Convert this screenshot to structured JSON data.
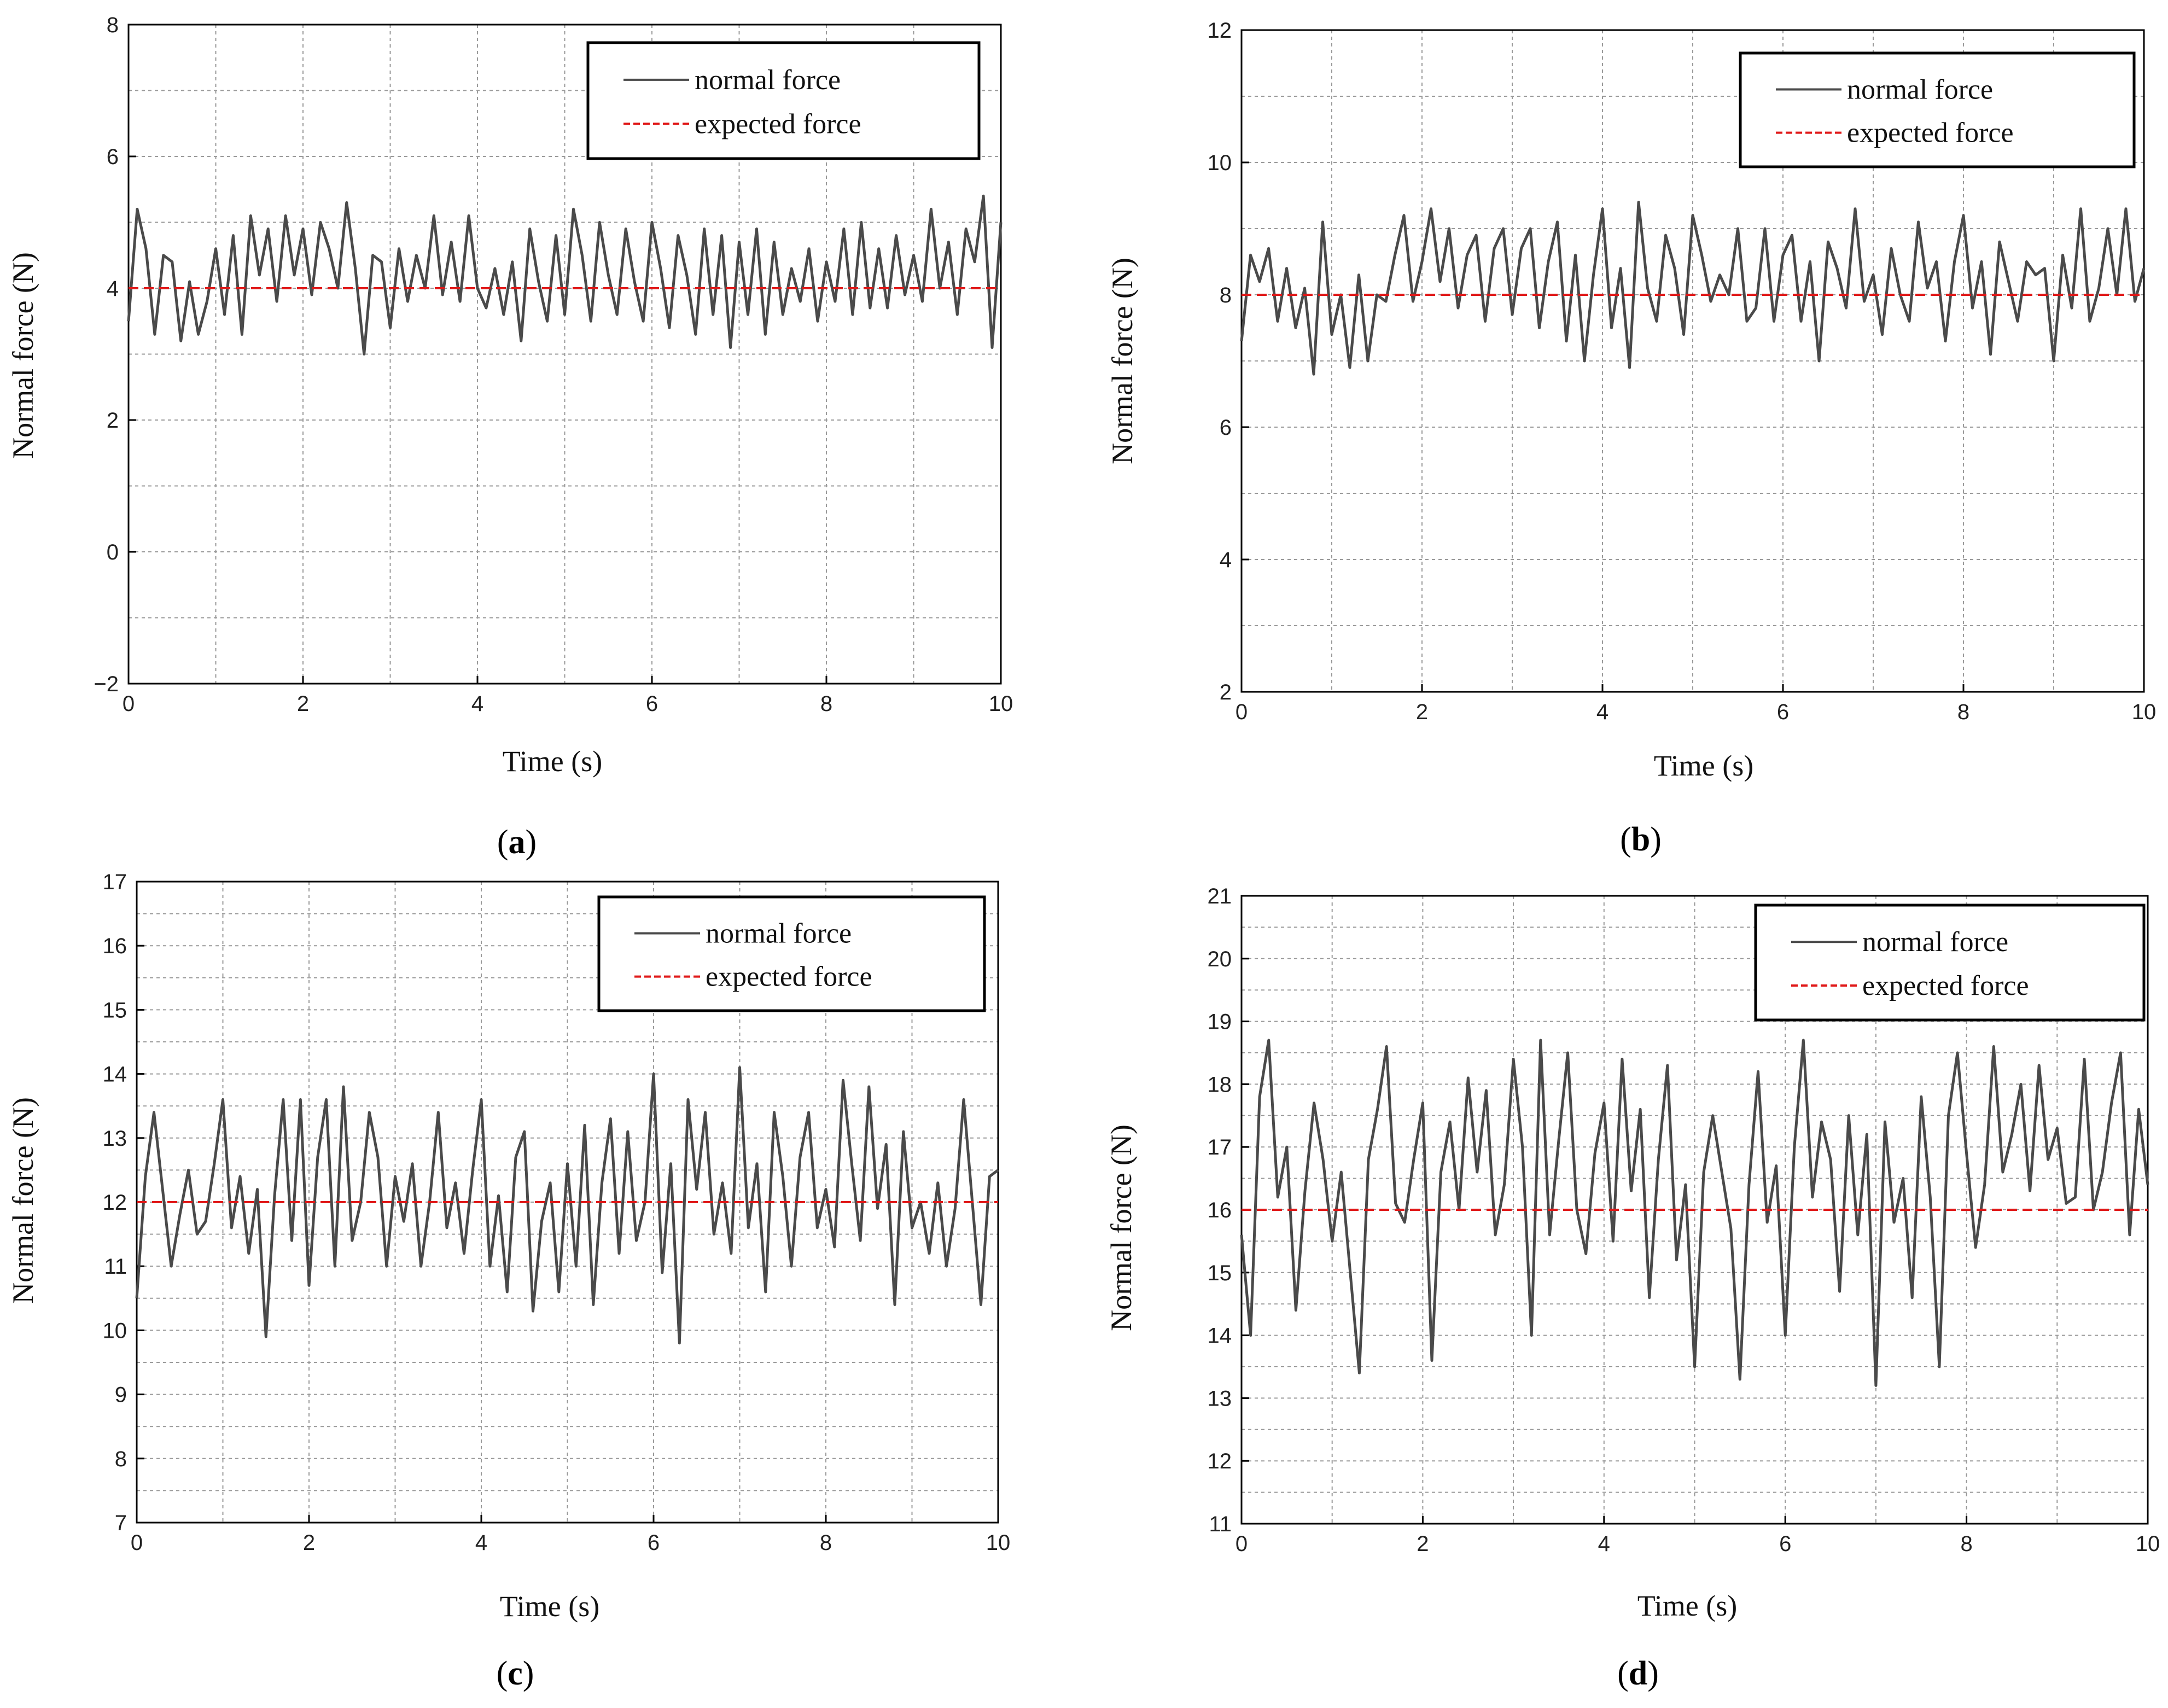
{
  "colors": {
    "measured": "#4a4a4a",
    "expected": "#e01818",
    "grid": "#9a9a9a",
    "frame": "#000000"
  },
  "chart_data": [
    {
      "panel": "a",
      "type": "line",
      "caption_open": "(",
      "caption_letter": "a",
      "caption_close": ")",
      "xlabel": "Time (s)",
      "ylabel": "Normal force (N)",
      "xlim": [
        0,
        10
      ],
      "ylim": [
        -2,
        8
      ],
      "xticks": [
        0,
        2,
        4,
        6,
        8,
        10
      ],
      "yticks": [
        -2,
        0,
        2,
        4,
        6,
        8
      ],
      "ytick_labels": [
        "−2",
        "0",
        "2",
        "4",
        "6",
        "8"
      ],
      "grid": true,
      "legend": "top-right",
      "series": [
        {
          "name": "normal force",
          "style": "solid",
          "color": "#4a4a4a",
          "x": [
            0,
            0.1,
            0.2,
            0.3,
            0.4,
            0.5,
            0.6,
            0.7,
            0.8,
            0.9,
            1.0,
            1.1,
            1.2,
            1.3,
            1.4,
            1.5,
            1.6,
            1.7,
            1.8,
            1.9,
            2.0,
            2.1,
            2.2,
            2.3,
            2.4,
            2.5,
            2.6,
            2.7,
            2.8,
            2.9,
            3.0,
            3.1,
            3.2,
            3.3,
            3.4,
            3.5,
            3.6,
            3.7,
            3.8,
            3.9,
            4.0,
            4.1,
            4.2,
            4.3,
            4.4,
            4.5,
            4.6,
            4.7,
            4.8,
            4.9,
            5.0,
            5.1,
            5.2,
            5.3,
            5.4,
            5.5,
            5.6,
            5.7,
            5.8,
            5.9,
            6.0,
            6.1,
            6.2,
            6.3,
            6.4,
            6.5,
            6.6,
            6.7,
            6.8,
            6.9,
            7.0,
            7.1,
            7.2,
            7.3,
            7.4,
            7.5,
            7.6,
            7.7,
            7.8,
            7.9,
            8.0,
            8.1,
            8.2,
            8.3,
            8.4,
            8.5,
            8.6,
            8.7,
            8.8,
            8.9,
            9.0,
            9.1,
            9.2,
            9.3,
            9.4,
            9.5,
            9.6,
            9.7,
            9.8,
            9.9,
            10.0
          ],
          "y": [
            3.5,
            5.2,
            4.6,
            3.3,
            4.5,
            4.4,
            3.2,
            4.1,
            3.3,
            3.8,
            4.6,
            3.6,
            4.8,
            3.3,
            5.1,
            4.2,
            4.9,
            3.8,
            5.1,
            4.2,
            4.9,
            3.9,
            5.0,
            4.6,
            4.0,
            5.3,
            4.3,
            3.0,
            4.5,
            4.4,
            3.4,
            4.6,
            3.8,
            4.5,
            4.0,
            5.1,
            3.9,
            4.7,
            3.8,
            5.1,
            4.0,
            3.7,
            4.3,
            3.6,
            4.4,
            3.2,
            4.9,
            4.1,
            3.5,
            4.8,
            3.6,
            5.2,
            4.5,
            3.5,
            5.0,
            4.2,
            3.6,
            4.9,
            4.1,
            3.5,
            5.0,
            4.3,
            3.4,
            4.8,
            4.2,
            3.3,
            4.9,
            3.6,
            4.8,
            3.1,
            4.7,
            3.6,
            4.9,
            3.3,
            4.7,
            3.6,
            4.3,
            3.8,
            4.6,
            3.5,
            4.4,
            3.8,
            4.9,
            3.6,
            5.0,
            3.7,
            4.6,
            3.7,
            4.8,
            3.9,
            4.5,
            3.8,
            5.2,
            4.0,
            4.7,
            3.6,
            4.9,
            4.4,
            5.4,
            3.1,
            5.0
          ]
        },
        {
          "name": "expected force",
          "style": "dashed",
          "color": "#e01818",
          "x": [
            0,
            10
          ],
          "y": [
            4,
            4
          ]
        }
      ]
    },
    {
      "panel": "b",
      "type": "line",
      "caption_open": "(",
      "caption_letter": "b",
      "caption_close": ")",
      "xlabel": "Time (s)",
      "ylabel": "Normal force (N)",
      "xlim": [
        0,
        10
      ],
      "ylim": [
        2,
        12
      ],
      "xticks": [
        0,
        2,
        4,
        6,
        8,
        10
      ],
      "yticks": [
        2,
        4,
        6,
        8,
        10,
        12
      ],
      "ytick_labels": [
        "2",
        "4",
        "6",
        "8",
        "10",
        "12"
      ],
      "grid": true,
      "legend": "top-right",
      "series": [
        {
          "name": "normal force",
          "style": "solid",
          "color": "#4a4a4a",
          "x": [
            0,
            0.1,
            0.2,
            0.3,
            0.4,
            0.5,
            0.6,
            0.7,
            0.8,
            0.9,
            1.0,
            1.1,
            1.2,
            1.3,
            1.4,
            1.5,
            1.6,
            1.7,
            1.8,
            1.9,
            2.0,
            2.1,
            2.2,
            2.3,
            2.4,
            2.5,
            2.6,
            2.7,
            2.8,
            2.9,
            3.0,
            3.1,
            3.2,
            3.3,
            3.4,
            3.5,
            3.6,
            3.7,
            3.8,
            3.9,
            4.0,
            4.1,
            4.2,
            4.3,
            4.4,
            4.5,
            4.6,
            4.7,
            4.8,
            4.9,
            5.0,
            5.1,
            5.2,
            5.3,
            5.4,
            5.5,
            5.6,
            5.7,
            5.8,
            5.9,
            6.0,
            6.1,
            6.2,
            6.3,
            6.4,
            6.5,
            6.6,
            6.7,
            6.8,
            6.9,
            7.0,
            7.1,
            7.2,
            7.3,
            7.4,
            7.5,
            7.6,
            7.7,
            7.8,
            7.9,
            8.0,
            8.1,
            8.2,
            8.3,
            8.4,
            8.5,
            8.6,
            8.7,
            8.8,
            8.9,
            9.0,
            9.1,
            9.2,
            9.3,
            9.4,
            9.5,
            9.6,
            9.7,
            9.8,
            9.9,
            10.0
          ],
          "y": [
            7.3,
            8.6,
            8.2,
            8.7,
            7.6,
            8.4,
            7.5,
            8.1,
            6.8,
            9.1,
            7.4,
            8.0,
            6.9,
            8.3,
            7.0,
            8.0,
            7.9,
            8.6,
            9.2,
            7.9,
            8.5,
            9.3,
            8.2,
            9.0,
            7.8,
            8.6,
            8.9,
            7.6,
            8.7,
            9.0,
            7.7,
            8.7,
            9.0,
            7.5,
            8.5,
            9.1,
            7.3,
            8.6,
            7.0,
            8.3,
            9.3,
            7.5,
            8.4,
            6.9,
            9.4,
            8.1,
            7.6,
            8.9,
            8.4,
            7.4,
            9.2,
            8.6,
            7.9,
            8.3,
            8.0,
            9.0,
            7.6,
            7.8,
            9.0,
            7.6,
            8.6,
            8.9,
            7.6,
            8.5,
            7.0,
            8.8,
            8.4,
            7.8,
            9.3,
            7.9,
            8.3,
            7.4,
            8.7,
            8.0,
            7.6,
            9.1,
            8.1,
            8.5,
            7.3,
            8.5,
            9.2,
            7.8,
            8.5,
            7.1,
            8.8,
            8.2,
            7.6,
            8.5,
            8.3,
            8.4,
            7.0,
            8.6,
            7.8,
            9.3,
            7.6,
            8.1,
            9.0,
            8.0,
            9.3,
            7.9,
            8.4
          ]
        },
        {
          "name": "expected force",
          "style": "dashed",
          "color": "#e01818",
          "x": [
            0,
            10
          ],
          "y": [
            8,
            8
          ]
        }
      ]
    },
    {
      "panel": "c",
      "type": "line",
      "caption_open": "(",
      "caption_letter": "c",
      "caption_close": ")",
      "xlabel": "Time (s)",
      "ylabel": "Normal force (N)",
      "xlim": [
        0,
        10
      ],
      "ylim": [
        7,
        17
      ],
      "xticks": [
        0,
        2,
        4,
        6,
        8,
        10
      ],
      "yticks": [
        7,
        8,
        9,
        10,
        11,
        12,
        13,
        14,
        15,
        16,
        17
      ],
      "ytick_labels": [
        "7",
        "8",
        "9",
        "10",
        "11",
        "12",
        "13",
        "14",
        "15",
        "16",
        "17"
      ],
      "grid": true,
      "legend": "top-right",
      "series": [
        {
          "name": "normal force",
          "style": "solid",
          "color": "#4a4a4a",
          "x": [
            0,
            0.1,
            0.2,
            0.3,
            0.4,
            0.5,
            0.6,
            0.7,
            0.8,
            0.9,
            1.0,
            1.1,
            1.2,
            1.3,
            1.4,
            1.5,
            1.6,
            1.7,
            1.8,
            1.9,
            2.0,
            2.1,
            2.2,
            2.3,
            2.4,
            2.5,
            2.6,
            2.7,
            2.8,
            2.9,
            3.0,
            3.1,
            3.2,
            3.3,
            3.4,
            3.5,
            3.6,
            3.7,
            3.8,
            3.9,
            4.0,
            4.1,
            4.2,
            4.3,
            4.4,
            4.5,
            4.6,
            4.7,
            4.8,
            4.9,
            5.0,
            5.1,
            5.2,
            5.3,
            5.4,
            5.5,
            5.6,
            5.7,
            5.8,
            5.9,
            6.0,
            6.1,
            6.2,
            6.3,
            6.4,
            6.5,
            6.6,
            6.7,
            6.8,
            6.9,
            7.0,
            7.1,
            7.2,
            7.3,
            7.4,
            7.5,
            7.6,
            7.7,
            7.8,
            7.9,
            8.0,
            8.1,
            8.2,
            8.3,
            8.4,
            8.5,
            8.6,
            8.7,
            8.8,
            8.9,
            9.0,
            9.1,
            9.2,
            9.3,
            9.4,
            9.5,
            9.6,
            9.7,
            9.8,
            9.9,
            10.0
          ],
          "y": [
            10.5,
            12.4,
            13.4,
            12.2,
            11.0,
            11.8,
            12.5,
            11.5,
            11.7,
            12.6,
            13.6,
            11.6,
            12.4,
            11.2,
            12.2,
            9.9,
            12.1,
            13.6,
            11.4,
            13.6,
            10.7,
            12.7,
            13.6,
            11.0,
            13.8,
            11.4,
            12.0,
            13.4,
            12.7,
            11.0,
            12.4,
            11.7,
            12.6,
            11.0,
            12.0,
            13.4,
            11.6,
            12.3,
            11.2,
            12.5,
            13.6,
            11.0,
            12.1,
            10.6,
            12.7,
            13.1,
            10.3,
            11.7,
            12.3,
            10.6,
            12.6,
            11.0,
            13.2,
            10.4,
            12.3,
            13.3,
            11.2,
            13.1,
            11.4,
            12.0,
            14.0,
            10.9,
            12.6,
            9.8,
            13.6,
            12.2,
            13.4,
            11.5,
            12.3,
            11.2,
            14.1,
            11.6,
            12.6,
            10.6,
            13.4,
            12.4,
            11.0,
            12.7,
            13.4,
            11.6,
            12.2,
            11.3,
            13.9,
            12.6,
            11.4,
            13.8,
            11.9,
            12.9,
            10.4,
            13.1,
            11.6,
            12.0,
            11.2,
            12.3,
            11.0,
            11.9,
            13.6,
            12.0,
            10.4,
            12.4,
            12.5
          ]
        },
        {
          "name": "expected force",
          "style": "dashed",
          "color": "#e01818",
          "x": [
            0,
            10
          ],
          "y": [
            12,
            12
          ]
        }
      ]
    },
    {
      "panel": "d",
      "type": "line",
      "caption_open": "(",
      "caption_letter": "d",
      "caption_close": ")",
      "xlabel": "Time (s)",
      "ylabel": "Normal force (N)",
      "xlim": [
        0,
        10
      ],
      "ylim": [
        11,
        21
      ],
      "xticks": [
        0,
        2,
        4,
        6,
        8,
        10
      ],
      "yticks": [
        11,
        12,
        13,
        14,
        15,
        16,
        17,
        18,
        19,
        20,
        21
      ],
      "ytick_labels": [
        "11",
        "12",
        "13",
        "14",
        "15",
        "16",
        "17",
        "18",
        "19",
        "20",
        "21"
      ],
      "grid": true,
      "legend": "top-right",
      "series": [
        {
          "name": "normal force",
          "style": "solid",
          "color": "#4a4a4a",
          "x": [
            0,
            0.1,
            0.2,
            0.3,
            0.4,
            0.5,
            0.6,
            0.7,
            0.8,
            0.9,
            1.0,
            1.1,
            1.2,
            1.3,
            1.4,
            1.5,
            1.6,
            1.7,
            1.8,
            1.9,
            2.0,
            2.1,
            2.2,
            2.3,
            2.4,
            2.5,
            2.6,
            2.7,
            2.8,
            2.9,
            3.0,
            3.1,
            3.2,
            3.3,
            3.4,
            3.5,
            3.6,
            3.7,
            3.8,
            3.9,
            4.0,
            4.1,
            4.2,
            4.3,
            4.4,
            4.5,
            4.6,
            4.7,
            4.8,
            4.9,
            5.0,
            5.1,
            5.2,
            5.3,
            5.4,
            5.5,
            5.6,
            5.7,
            5.8,
            5.9,
            6.0,
            6.1,
            6.2,
            6.3,
            6.4,
            6.5,
            6.6,
            6.7,
            6.8,
            6.9,
            7.0,
            7.1,
            7.2,
            7.3,
            7.4,
            7.5,
            7.6,
            7.7,
            7.8,
            7.9,
            8.0,
            8.1,
            8.2,
            8.3,
            8.4,
            8.5,
            8.6,
            8.7,
            8.8,
            8.9,
            9.0,
            9.1,
            9.2,
            9.3,
            9.4,
            9.5,
            9.6,
            9.7,
            9.8,
            9.9,
            10.0
          ],
          "y": [
            15.6,
            14.0,
            17.8,
            18.7,
            16.2,
            17.0,
            14.4,
            16.3,
            17.7,
            16.8,
            15.5,
            16.6,
            15.0,
            13.4,
            16.8,
            17.6,
            18.6,
            16.1,
            15.8,
            16.8,
            17.7,
            13.6,
            16.6,
            17.4,
            16.0,
            18.1,
            16.6,
            17.9,
            15.6,
            16.4,
            18.4,
            17.0,
            14.0,
            18.7,
            15.6,
            17.1,
            18.5,
            16.0,
            15.3,
            16.9,
            17.7,
            15.5,
            18.4,
            16.3,
            17.6,
            14.6,
            16.8,
            18.3,
            15.2,
            16.4,
            13.5,
            16.6,
            17.5,
            16.6,
            15.7,
            13.3,
            16.4,
            18.2,
            15.8,
            16.7,
            14.0,
            17.0,
            18.7,
            16.2,
            17.4,
            16.8,
            14.7,
            17.5,
            15.6,
            17.2,
            13.2,
            17.4,
            15.8,
            16.5,
            14.6,
            17.8,
            16.2,
            13.5,
            17.5,
            18.5,
            16.9,
            15.4,
            16.4,
            18.6,
            16.6,
            17.2,
            18.0,
            16.3,
            18.3,
            16.8,
            17.3,
            16.1,
            16.2,
            18.4,
            16.0,
            16.6,
            17.7,
            18.5,
            15.6,
            17.6,
            16.4
          ]
        },
        {
          "name": "expected force",
          "style": "dashed",
          "color": "#e01818",
          "x": [
            0,
            10
          ],
          "y": [
            16,
            16
          ]
        }
      ]
    }
  ]
}
